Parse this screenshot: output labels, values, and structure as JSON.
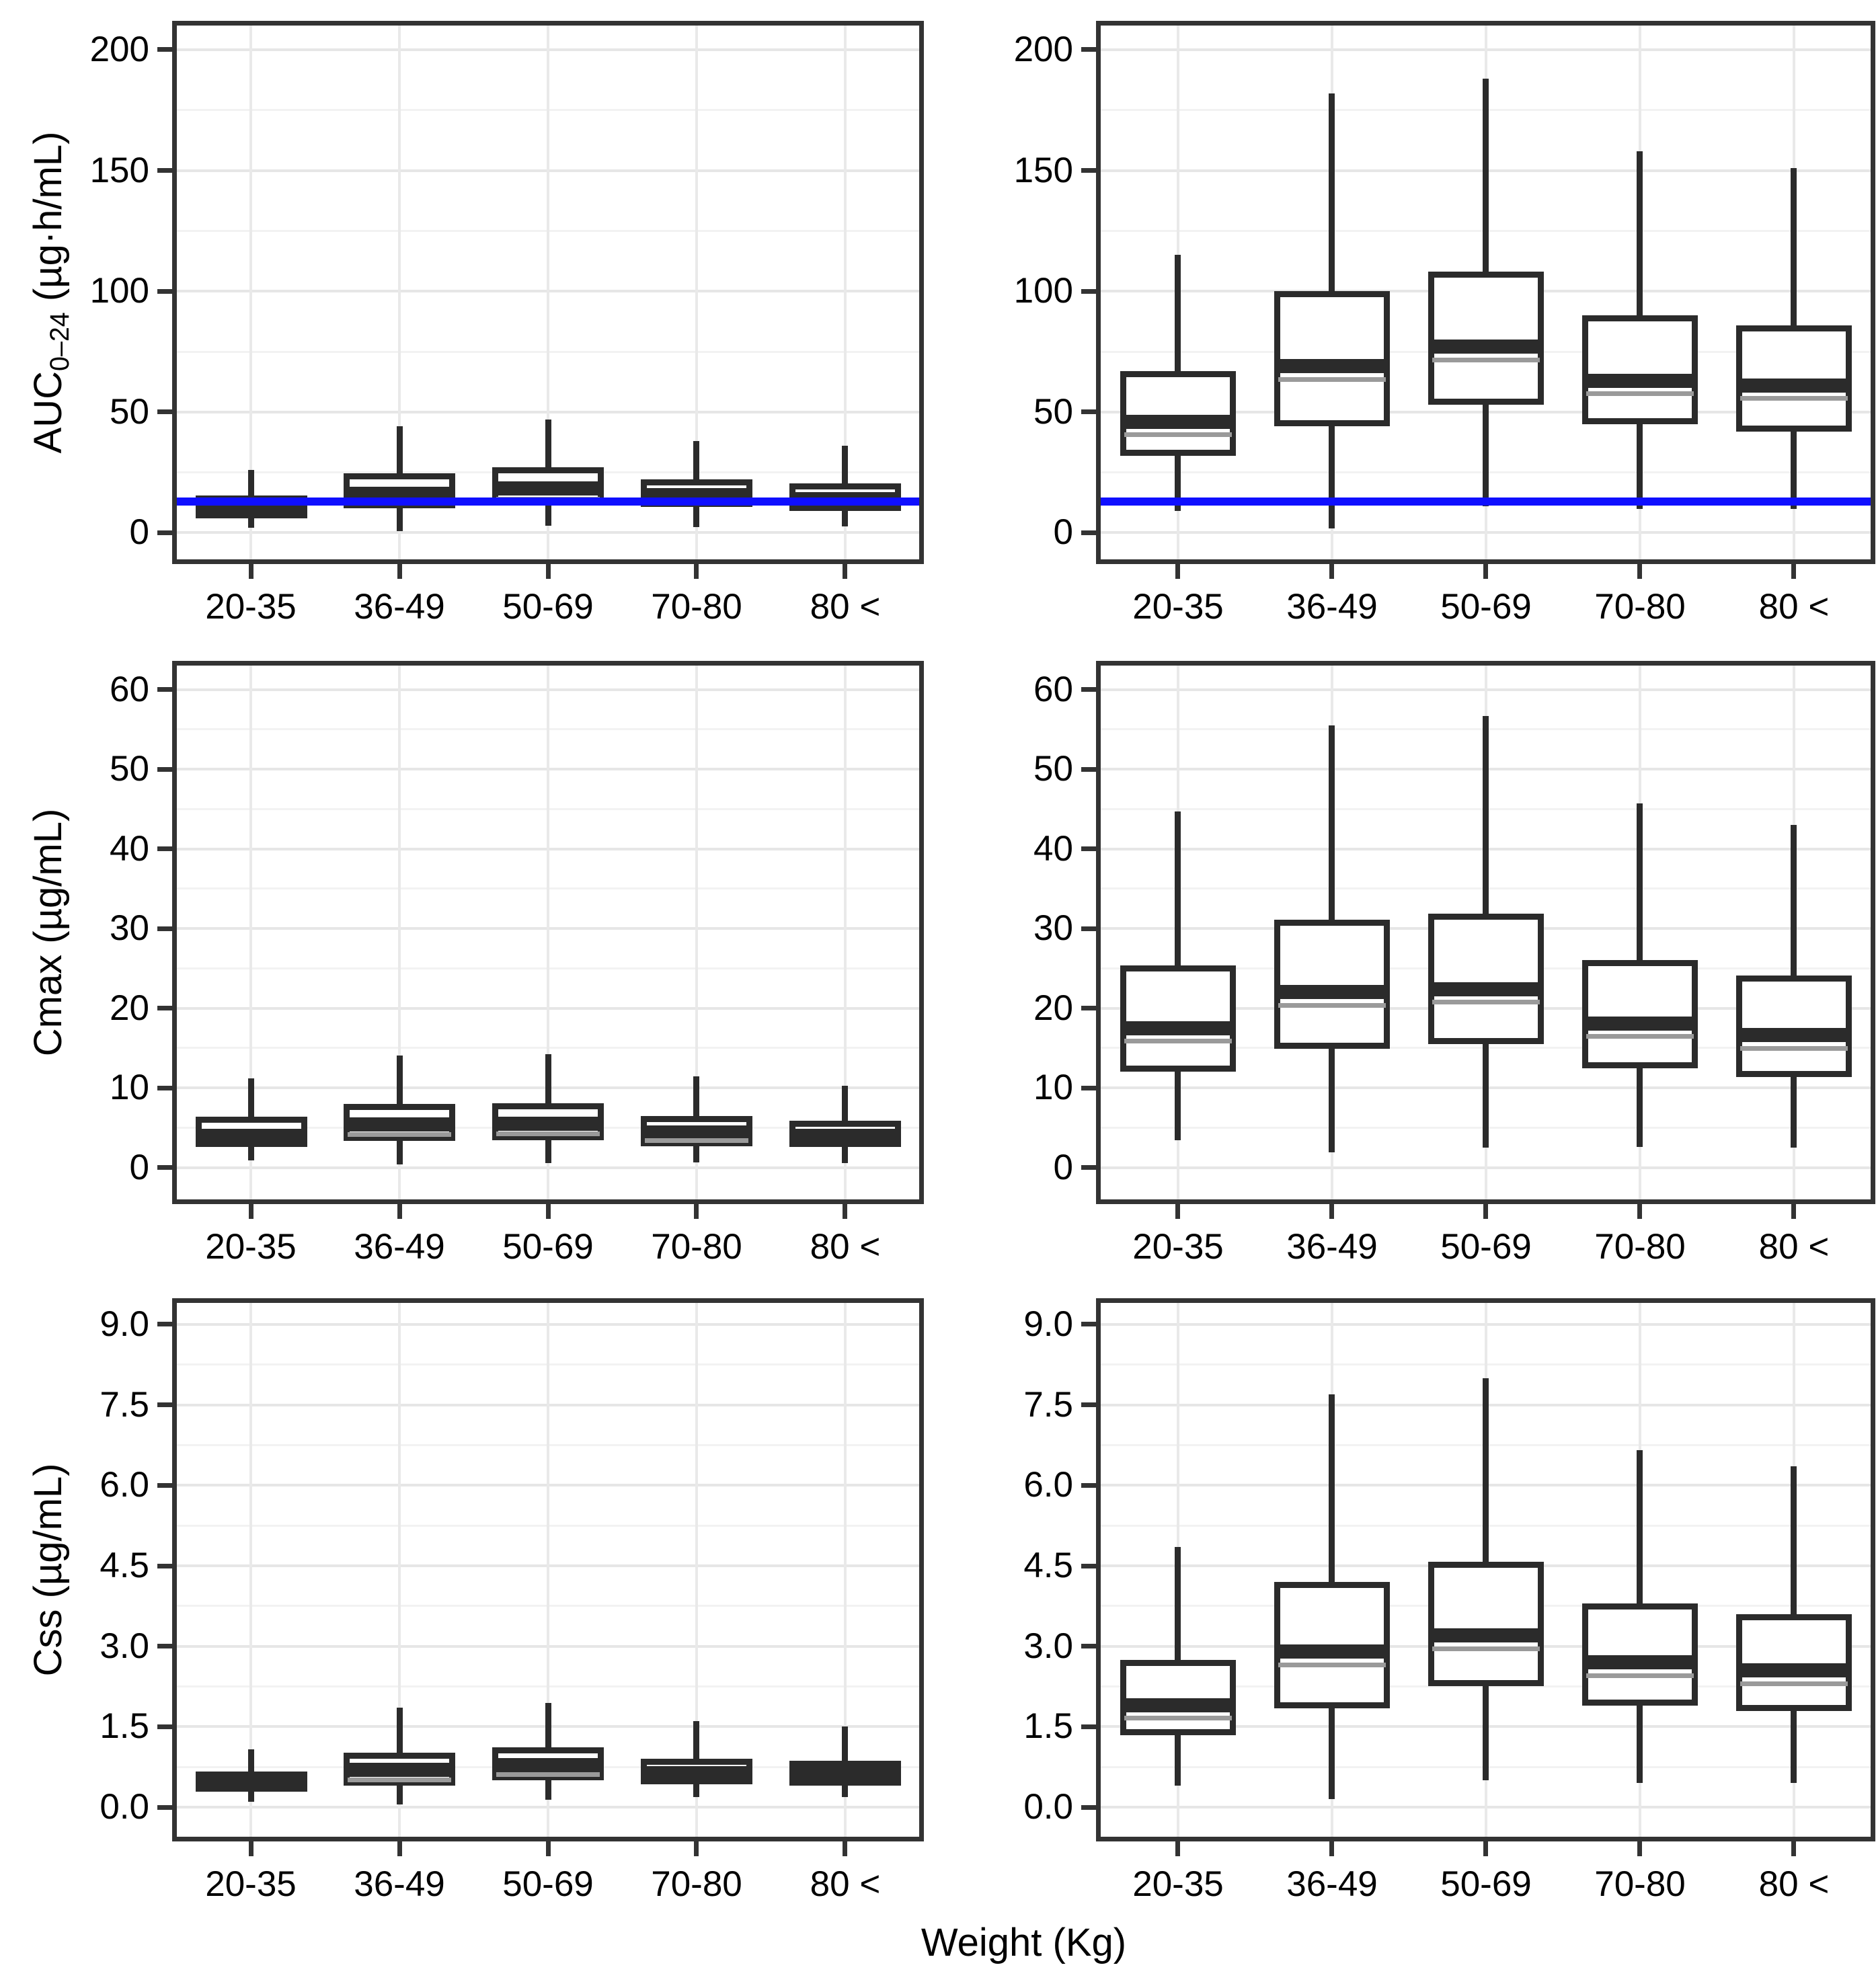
{
  "figure": {
    "xlabel": "Weight (Kg)",
    "categories": [
      "20-35",
      "36-49",
      "50-69",
      "70-80",
      "80 <"
    ],
    "colors": {
      "box_line": "#2b2b2b",
      "median_subline": "#9a9a9a",
      "reference_line": "#0f0fff",
      "panel_border": "#333333",
      "grid_major": "#e6e6e6",
      "grid_minor": "#f2f2f2",
      "background": "#ffffff"
    }
  },
  "chart_data": [
    {
      "id": "auc-left",
      "type": "boxplot",
      "row": 0,
      "col": 0,
      "ylabel_parts": {
        "prefix": "AUC",
        "sub": "0–24",
        "suffix": " (µg·h/mL)"
      },
      "ylim": [
        -11,
        210
      ],
      "yticks": {
        "values": [
          0,
          50,
          100,
          150,
          200
        ],
        "labels": [
          "0",
          "50",
          "100",
          "150",
          "200"
        ]
      },
      "grid": true,
      "reference_line": {
        "value": 13,
        "color": "#0f0fff"
      },
      "boxes": [
        {
          "category": "20-35",
          "min": 2,
          "q1": 6,
          "median": 10.5,
          "q3": 15.5,
          "max": 26
        },
        {
          "category": "36-49",
          "min": 0.5,
          "q1": 10,
          "median": 16,
          "q3": 24.5,
          "max": 44
        },
        {
          "category": "50-69",
          "min": 3,
          "q1": 11.5,
          "median": 18.5,
          "q3": 27,
          "max": 47
        },
        {
          "category": "70-80",
          "min": 2.5,
          "q1": 10.5,
          "median": 15.5,
          "q3": 22,
          "max": 38
        },
        {
          "category": "80 <",
          "min": 2.5,
          "q1": 9,
          "median": 14,
          "q3": 20.5,
          "max": 36
        }
      ]
    },
    {
      "id": "auc-right",
      "type": "boxplot",
      "row": 0,
      "col": 1,
      "ylim": [
        -11,
        210
      ],
      "yticks": {
        "values": [
          0,
          50,
          100,
          150,
          200
        ],
        "labels": [
          "0",
          "50",
          "100",
          "150",
          "200"
        ]
      },
      "grid": true,
      "reference_line": {
        "value": 13,
        "color": "#0f0fff"
      },
      "boxes": [
        {
          "category": "20-35",
          "min": 9,
          "q1": 32,
          "median": 46,
          "q3": 67,
          "max": 115
        },
        {
          "category": "36-49",
          "min": 2,
          "q1": 44,
          "median": 69,
          "q3": 100,
          "max": 182
        },
        {
          "category": "50-69",
          "min": 11,
          "q1": 53,
          "median": 77,
          "q3": 108,
          "max": 188
        },
        {
          "category": "70-80",
          "min": 10,
          "q1": 45,
          "median": 63,
          "q3": 90,
          "max": 158
        },
        {
          "category": "80 <",
          "min": 10,
          "q1": 42,
          "median": 61,
          "q3": 86,
          "max": 151
        }
      ]
    },
    {
      "id": "cmax-left",
      "type": "boxplot",
      "row": 1,
      "col": 0,
      "ylabel": "Cmax (µg/mL)",
      "ylim": [
        -4,
        63
      ],
      "yticks": {
        "values": [
          0,
          10,
          20,
          30,
          40,
          50,
          60
        ],
        "labels": [
          "0",
          "10",
          "20",
          "30",
          "40",
          "50",
          "60"
        ]
      },
      "grid": true,
      "boxes": [
        {
          "category": "20-35",
          "min": 0.9,
          "q1": 2.6,
          "median": 4.0,
          "q3": 6.4,
          "max": 11.2
        },
        {
          "category": "36-49",
          "min": 0.4,
          "q1": 3.4,
          "median": 5.4,
          "q3": 8.0,
          "max": 14.1
        },
        {
          "category": "50-69",
          "min": 0.5,
          "q1": 3.5,
          "median": 5.5,
          "q3": 8.1,
          "max": 14.2
        },
        {
          "category": "70-80",
          "min": 0.6,
          "q1": 2.7,
          "median": 4.4,
          "q3": 6.5,
          "max": 11.4
        },
        {
          "category": "80 <",
          "min": 0.6,
          "q1": 2.6,
          "median": 4.0,
          "q3": 5.9,
          "max": 10.3
        }
      ]
    },
    {
      "id": "cmax-right",
      "type": "boxplot",
      "row": 1,
      "col": 1,
      "ylim": [
        -4,
        63
      ],
      "yticks": {
        "values": [
          0,
          10,
          20,
          30,
          40,
          50,
          60
        ],
        "labels": [
          "0",
          "10",
          "20",
          "30",
          "40",
          "50",
          "60"
        ]
      },
      "grid": true,
      "boxes": [
        {
          "category": "20-35",
          "min": 3.4,
          "q1": 12.1,
          "median": 17.5,
          "q3": 25.4,
          "max": 44.7
        },
        {
          "category": "36-49",
          "min": 1.9,
          "q1": 14.9,
          "median": 22.0,
          "q3": 31.1,
          "max": 55.5
        },
        {
          "category": "50-69",
          "min": 2.5,
          "q1": 15.5,
          "median": 22.4,
          "q3": 31.9,
          "max": 56.7
        },
        {
          "category": "70-80",
          "min": 2.6,
          "q1": 12.4,
          "median": 18.1,
          "q3": 26.0,
          "max": 45.7
        },
        {
          "category": "80 <",
          "min": 2.5,
          "q1": 11.4,
          "median": 16.6,
          "q3": 24.1,
          "max": 43.0
        }
      ]
    },
    {
      "id": "css-left",
      "type": "boxplot",
      "row": 2,
      "col": 0,
      "ylabel": "Css (µg/mL)",
      "ylim": [
        -0.55,
        9.4
      ],
      "yticks": {
        "values": [
          0,
          1.5,
          3,
          4.5,
          6,
          7.5,
          9
        ],
        "labels": [
          "0.0",
          "1.5",
          "3.0",
          "4.5",
          "6.0",
          "7.5",
          "9.0"
        ]
      },
      "grid": true,
      "boxes": [
        {
          "category": "20-35",
          "min": 0.1,
          "q1": 0.28,
          "median": 0.5,
          "q3": 0.66,
          "max": 1.08
        },
        {
          "category": "36-49",
          "min": 0.05,
          "q1": 0.4,
          "median": 0.7,
          "q3": 1.02,
          "max": 1.85
        },
        {
          "category": "50-69",
          "min": 0.15,
          "q1": 0.5,
          "median": 0.78,
          "q3": 1.12,
          "max": 1.95
        },
        {
          "category": "70-80",
          "min": 0.18,
          "q1": 0.42,
          "median": 0.64,
          "q3": 0.9,
          "max": 1.6
        },
        {
          "category": "80 <",
          "min": 0.18,
          "q1": 0.4,
          "median": 0.62,
          "q3": 0.86,
          "max": 1.5
        }
      ]
    },
    {
      "id": "css-right",
      "type": "boxplot",
      "row": 2,
      "col": 1,
      "ylim": [
        -0.55,
        9.4
      ],
      "yticks": {
        "values": [
          0,
          1.5,
          3,
          4.5,
          6,
          7.5,
          9
        ],
        "labels": [
          "0.0",
          "1.5",
          "3.0",
          "4.5",
          "6.0",
          "7.5",
          "9.0"
        ]
      },
      "grid": true,
      "boxes": [
        {
          "category": "20-35",
          "min": 0.4,
          "q1": 1.35,
          "median": 1.9,
          "q3": 2.75,
          "max": 4.85
        },
        {
          "category": "36-49",
          "min": 0.15,
          "q1": 1.85,
          "median": 2.9,
          "q3": 4.2,
          "max": 7.7
        },
        {
          "category": "50-69",
          "min": 0.5,
          "q1": 2.25,
          "median": 3.2,
          "q3": 4.57,
          "max": 8.0
        },
        {
          "category": "70-80",
          "min": 0.45,
          "q1": 1.9,
          "median": 2.7,
          "q3": 3.8,
          "max": 6.65
        },
        {
          "category": "80 <",
          "min": 0.45,
          "q1": 1.8,
          "median": 2.55,
          "q3": 3.6,
          "max": 6.35
        }
      ]
    }
  ]
}
